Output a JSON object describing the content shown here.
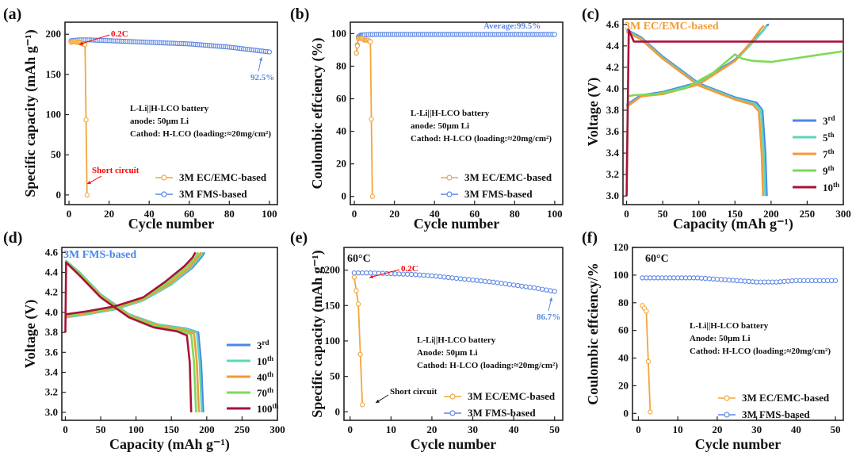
{
  "colors": {
    "orange": "#f4a53a",
    "blue": "#5b86e5",
    "annotation_red": "#e24a3b",
    "annotation_blue": "#4b7ae0"
  },
  "chart_data": [
    {
      "id": "a",
      "panel_label": "(a)",
      "type": "line",
      "xlabel": "Cycle number",
      "ylabel": "Specific capacity (mAh g⁻¹)",
      "xlim": [
        -2,
        104
      ],
      "ylim": [
        -12,
        215
      ],
      "xticks": [
        "0",
        "20",
        "40",
        "60",
        "80",
        "100"
      ],
      "yticks": [
        "0",
        "50",
        "100",
        "150",
        "200"
      ],
      "notes": [
        "L-Li||H-LCO battery",
        "anode: 50μm Li",
        "Cathod: H-LCO (loading:≈20mg/cm²)"
      ],
      "annotations": [
        {
          "text": "0.2C",
          "color": "red"
        },
        {
          "text": "92.5%",
          "color": "blue"
        },
        {
          "text": "Short circuit",
          "color": "red"
        }
      ],
      "series": [
        {
          "name": "3M EC/EMC-based",
          "color": "orange",
          "x": [
            1,
            2,
            3,
            4,
            5,
            6,
            7,
            8,
            9
          ],
          "y": [
            190,
            191,
            191,
            190,
            190,
            189,
            188,
            187,
            0
          ]
        },
        {
          "name": "3M FMS-based",
          "color": "blue",
          "x": [
            1,
            5,
            10,
            20,
            30,
            40,
            50,
            60,
            70,
            80,
            90,
            100
          ],
          "y": [
            192,
            193,
            193,
            192,
            191,
            190,
            189,
            188,
            186,
            184,
            181,
            178
          ]
        }
      ]
    },
    {
      "id": "b",
      "panel_label": "(b)",
      "type": "line",
      "xlabel": "Cycle number",
      "ylabel": "Coulombic effciency (%)",
      "xlim": [
        -2,
        104
      ],
      "ylim": [
        -5,
        107
      ],
      "xticks": [
        "0",
        "20",
        "40",
        "60",
        "80",
        "100"
      ],
      "yticks": [
        "0",
        "20",
        "40",
        "60",
        "80",
        "100"
      ],
      "notes": [
        "L-Li||H-LCO battery",
        "anode: 50μm Li",
        "Cathod: H-LCO (loading:≈20mg/cm²)"
      ],
      "annotations": [
        {
          "text": "Average:99.5%",
          "color": "blue"
        }
      ],
      "series": [
        {
          "name": "3M EC/EMC-based",
          "color": "orange",
          "x": [
            1,
            2,
            3,
            4,
            5,
            6,
            7,
            8,
            9
          ],
          "y": [
            88,
            97,
            97,
            97,
            96,
            96,
            96,
            95,
            0
          ]
        },
        {
          "name": "3M FMS-based",
          "color": "blue",
          "x": [
            1,
            2,
            3,
            5,
            10,
            20,
            40,
            60,
            80,
            100
          ],
          "y": [
            88,
            98,
            99,
            99.3,
            99.5,
            99.5,
            99.5,
            99.5,
            99.5,
            99.5
          ]
        }
      ]
    },
    {
      "id": "c",
      "panel_label": "(c)",
      "type": "line",
      "title": "3M EC/EMC-based",
      "xlabel": "Capacity (mAh g⁻¹)",
      "ylabel": "Voltage (V)",
      "xlim": [
        -5,
        300
      ],
      "ylim": [
        2.92,
        4.65
      ],
      "xticks": [
        "0",
        "50",
        "100",
        "150",
        "200",
        "250",
        "300"
      ],
      "yticks": [
        "3.0",
        "3.2",
        "3.4",
        "3.6",
        "3.8",
        "4.0",
        "4.2",
        "4.4",
        "4.6"
      ],
      "legend": [
        {
          "name": "3rd",
          "base": "3",
          "sup": "rd"
        },
        {
          "name": "5th",
          "base": "5",
          "sup": "th"
        },
        {
          "name": "7th",
          "base": "7",
          "sup": "th"
        },
        {
          "name": "9th",
          "base": "9",
          "sup": "th"
        },
        {
          "name": "10th",
          "base": "10",
          "sup": "th"
        }
      ],
      "series": [
        {
          "name": "3rd",
          "color": "#4a86e8",
          "x": [
            0,
            20,
            50,
            100,
            150,
            180,
            190,
            194,
            197
          ],
          "y": [
            3.85,
            3.94,
            3.97,
            4.06,
            4.27,
            4.48,
            4.55,
            4.59,
            4.6
          ]
        },
        {
          "name": "3rd",
          "color": "#4a86e8",
          "x": [
            0,
            20,
            50,
            100,
            150,
            180,
            188,
            192,
            194
          ],
          "y": [
            4.55,
            4.48,
            4.3,
            4.05,
            3.92,
            3.87,
            3.8,
            3.4,
            3.0
          ]
        },
        {
          "name": "5th",
          "color": "#5cd6b8",
          "x": [
            0,
            20,
            50,
            100,
            150,
            180,
            190,
            194
          ],
          "y": [
            3.84,
            3.93,
            3.96,
            4.05,
            4.26,
            4.47,
            4.55,
            4.59
          ]
        },
        {
          "name": "5th",
          "color": "#5cd6b8",
          "x": [
            0,
            20,
            50,
            100,
            150,
            178,
            186,
            190,
            192
          ],
          "y": [
            4.54,
            4.47,
            4.29,
            4.04,
            3.91,
            3.86,
            3.8,
            3.4,
            3.0
          ]
        },
        {
          "name": "7th",
          "color": "#f29b38",
          "x": [
            0,
            20,
            50,
            100,
            150,
            175,
            185,
            190
          ],
          "y": [
            3.83,
            3.93,
            3.95,
            4.04,
            4.26,
            4.46,
            4.55,
            4.59
          ]
        },
        {
          "name": "7th",
          "color": "#f29b38",
          "x": [
            0,
            20,
            50,
            100,
            150,
            175,
            183,
            187,
            189
          ],
          "y": [
            4.53,
            4.46,
            4.28,
            4.03,
            3.9,
            3.85,
            3.79,
            3.4,
            3.0
          ]
        },
        {
          "name": "9th",
          "color": "#7ed957",
          "x": [
            0,
            2,
            10,
            40,
            80,
            120,
            150,
            160,
            175,
            200,
            250,
            300
          ],
          "y": [
            3.18,
            3.93,
            3.94,
            3.95,
            4.0,
            4.15,
            4.32,
            4.28,
            4.26,
            4.25,
            4.3,
            4.35
          ]
        },
        {
          "name": "10th",
          "color": "#a8123a",
          "x": [
            0,
            3,
            10,
            50,
            100,
            150,
            200,
            250,
            300
          ],
          "y": [
            3.0,
            4.55,
            4.44,
            4.44,
            4.44,
            4.44,
            4.44,
            4.44,
            4.44
          ]
        }
      ]
    },
    {
      "id": "d",
      "panel_label": "(d)",
      "type": "line",
      "title": "3M FMS-based",
      "xlabel": "Capacity (mAh g⁻¹)",
      "ylabel": "Voltage (V)",
      "xlim": [
        -5,
        300
      ],
      "ylim": [
        2.92,
        4.65
      ],
      "xticks": [
        "0",
        "50",
        "100",
        "150",
        "200",
        "250",
        "300"
      ],
      "yticks": [
        "3.0",
        "3.2",
        "3.4",
        "3.6",
        "3.8",
        "4.0",
        "4.2",
        "4.4",
        "4.6"
      ],
      "legend": [
        {
          "name": "3rd",
          "base": "3",
          "sup": "rd"
        },
        {
          "name": "10th",
          "base": "10",
          "sup": "th"
        },
        {
          "name": "40th",
          "base": "40",
          "sup": "th"
        },
        {
          "name": "70th",
          "base": "70",
          "sup": "th"
        },
        {
          "name": "100th",
          "base": "100",
          "sup": "th"
        }
      ],
      "series": [
        {
          "name": "3rd",
          "color": "#4a86e8",
          "x": [
            0,
            30,
            70,
            110,
            150,
            180,
            192,
            197
          ],
          "y": [
            3.95,
            3.98,
            4.03,
            4.12,
            4.28,
            4.45,
            4.55,
            4.6
          ]
        },
        {
          "name": "3rd",
          "color": "#4a86e8",
          "x": [
            0,
            20,
            50,
            90,
            130,
            170,
            188,
            192,
            195
          ],
          "y": [
            4.52,
            4.4,
            4.18,
            3.98,
            3.88,
            3.84,
            3.8,
            3.5,
            3.0
          ]
        },
        {
          "name": "10th",
          "color": "#5cd6b8",
          "x": [
            0,
            30,
            70,
            110,
            150,
            178,
            190,
            195
          ],
          "y": [
            3.95,
            3.98,
            4.03,
            4.12,
            4.28,
            4.45,
            4.55,
            4.6
          ]
        },
        {
          "name": "10th",
          "color": "#5cd6b8",
          "x": [
            0,
            20,
            50,
            90,
            130,
            168,
            186,
            190,
            193
          ],
          "y": [
            4.52,
            4.4,
            4.18,
            3.98,
            3.88,
            3.84,
            3.8,
            3.5,
            3.0
          ]
        },
        {
          "name": "40th",
          "color": "#f29b38",
          "x": [
            0,
            30,
            70,
            110,
            148,
            175,
            187,
            192
          ],
          "y": [
            3.96,
            3.99,
            4.04,
            4.13,
            4.29,
            4.45,
            4.55,
            4.6
          ]
        },
        {
          "name": "40th",
          "color": "#f29b38",
          "x": [
            0,
            20,
            50,
            90,
            130,
            165,
            182,
            186,
            189
          ],
          "y": [
            4.51,
            4.39,
            4.17,
            3.97,
            3.87,
            3.83,
            3.79,
            3.5,
            3.0
          ]
        },
        {
          "name": "70th",
          "color": "#7ed957",
          "x": [
            0,
            30,
            70,
            110,
            145,
            172,
            184,
            188
          ],
          "y": [
            3.97,
            4.0,
            4.05,
            4.14,
            4.3,
            4.46,
            4.55,
            4.6
          ]
        },
        {
          "name": "70th",
          "color": "#7ed957",
          "x": [
            0,
            20,
            50,
            90,
            128,
            162,
            178,
            182,
            185
          ],
          "y": [
            4.51,
            4.38,
            4.16,
            3.96,
            3.86,
            3.82,
            3.78,
            3.5,
            3.0
          ]
        },
        {
          "name": "100th",
          "color": "#a8123a",
          "x": [
            0,
            30,
            70,
            110,
            142,
            168,
            180,
            184
          ],
          "y": [
            3.98,
            4.01,
            4.06,
            4.15,
            4.31,
            4.46,
            4.55,
            4.6
          ]
        },
        {
          "name": "100th",
          "color": "#a8123a",
          "x": [
            0,
            1,
            20,
            50,
            90,
            125,
            158,
            172,
            176,
            178
          ],
          "y": [
            3.8,
            4.5,
            4.37,
            4.15,
            3.95,
            3.85,
            3.81,
            3.77,
            3.5,
            3.0
          ]
        }
      ]
    },
    {
      "id": "e",
      "panel_label": "(e)",
      "type": "line",
      "title": "60°C",
      "xlabel": "Cycle number",
      "ylabel": "Specific capacity (mAh g⁻¹)",
      "xlim": [
        -1.5,
        52
      ],
      "ylim": [
        -12,
        232
      ],
      "xticks": [
        "0",
        "10",
        "20",
        "30",
        "40",
        "50"
      ],
      "yticks": [
        "0",
        "50",
        "100",
        "150",
        "200"
      ],
      "notes": [
        "L-Li||H-LCO battery",
        "Anode: 50μm Li",
        "Cathod: H-LCO (loading:≈20mg/cm²)"
      ],
      "annotations": [
        {
          "text": "0.2C",
          "color": "red"
        },
        {
          "text": "86.7%",
          "color": "blue"
        },
        {
          "text": "Short circuit",
          "color": "black"
        }
      ],
      "series": [
        {
          "name": "3M EC/EMC-based",
          "color": "orange",
          "x": [
            1,
            2,
            3
          ],
          "y": [
            190,
            152,
            10
          ]
        },
        {
          "name": "3M FMS-based",
          "color": "blue",
          "x": [
            1,
            5,
            10,
            15,
            20,
            25,
            30,
            35,
            40,
            45,
            50
          ],
          "y": [
            196,
            196,
            195,
            194,
            192,
            189,
            186,
            183,
            179,
            175,
            170
          ]
        }
      ]
    },
    {
      "id": "f",
      "panel_label": "(f)",
      "type": "line",
      "title": "60°C",
      "xlabel": "Cycle number",
      "ylabel": "Coulombic effciency/%",
      "xlim": [
        -1.5,
        52
      ],
      "ylim": [
        -5,
        120
      ],
      "xticks": [
        "0",
        "10",
        "20",
        "30",
        "40",
        "50"
      ],
      "yticks": [
        "0",
        "20",
        "40",
        "60",
        "80",
        "100",
        "120"
      ],
      "notes": [
        "L-Li||H-LCO battery",
        "Anode: 50μm Li",
        "Cathod: H-LCO (loading:≈20mg/cm²)"
      ],
      "series": [
        {
          "name": "3M EC/EMC-based",
          "color": "orange",
          "x": [
            1,
            2,
            3
          ],
          "y": [
            78,
            74,
            1
          ]
        },
        {
          "name": "3M FMS-based",
          "color": "blue",
          "x": [
            1,
            5,
            10,
            15,
            20,
            25,
            30,
            35,
            40,
            45,
            50
          ],
          "y": [
            98,
            98,
            98,
            98,
            97,
            96,
            95,
            95,
            96,
            96,
            96
          ]
        }
      ]
    }
  ]
}
